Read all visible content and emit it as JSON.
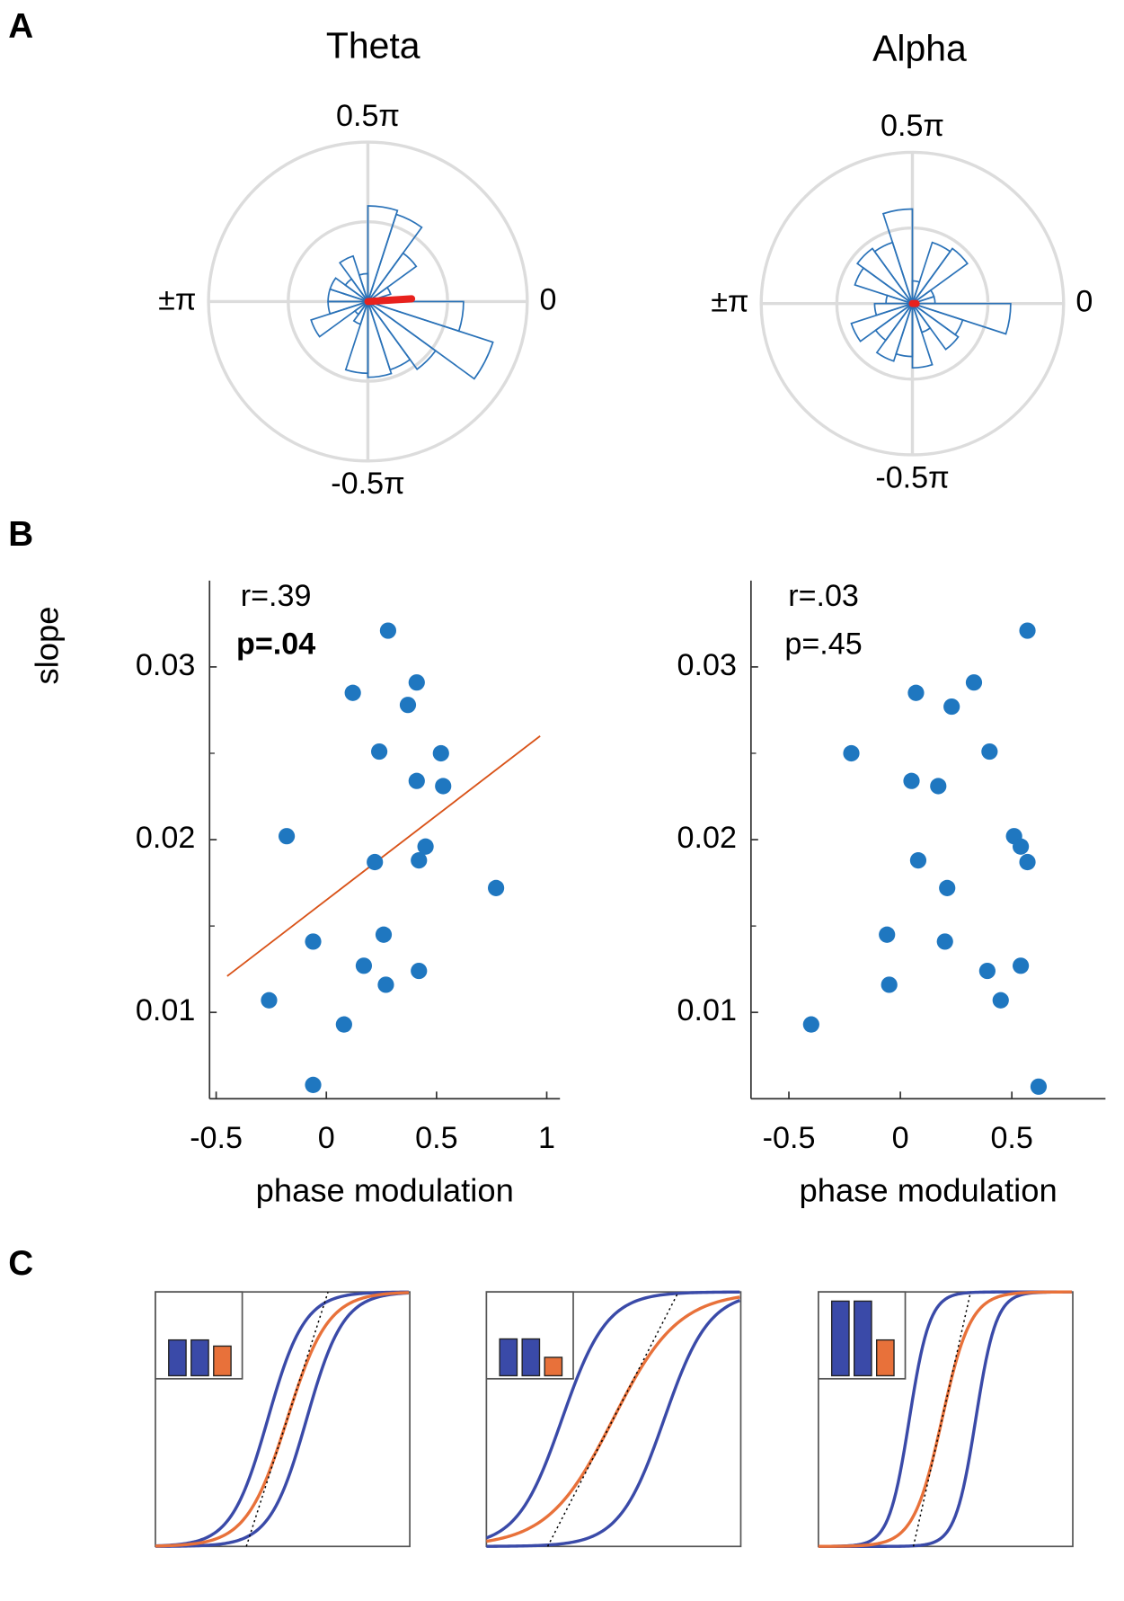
{
  "panel_labels": [
    "A",
    "B",
    "C"
  ],
  "chart_data": [
    {
      "type": "polar_histogram",
      "title": "Theta",
      "bins": [
        -1,
        -0.9,
        -0.8,
        -0.7,
        -0.6,
        -0.5,
        -0.4,
        -0.3,
        -0.2,
        -0.1,
        0,
        0.1,
        0.2,
        0.3,
        0.4,
        0.5,
        0.6,
        0.7,
        0.8,
        0.9,
        1
      ],
      "values": [
        0.5,
        0.75,
        0.2,
        0.3,
        0.9,
        0.95,
        0.9,
        1.05,
        1.65,
        1.2,
        0.2,
        0.3,
        0.75,
        1.15,
        1.2,
        0.35,
        0.6,
        0.35,
        0.5,
        0.5
      ],
      "rlim": [
        0,
        2
      ],
      "rticks": [
        1,
        2
      ],
      "thetaticks": [
        {
          "value": 0.5,
          "label": "0.5π"
        },
        0,
        {
          "value": 1,
          "label": "±π"
        },
        {
          "value": -0.5,
          "label": "-0.5π"
        }
      ],
      "color": "#2a72b8",
      "mean_angle": 0.02,
      "mean_length": 0.55,
      "mean_color": "#e8211d"
    },
    {
      "type": "polar_histogram",
      "title": "Alpha",
      "bins": [
        -1,
        -0.9,
        -0.8,
        -0.7,
        -0.6,
        -0.5,
        -0.4,
        -0.3,
        -0.2,
        -0.1,
        0,
        0.1,
        0.2,
        0.3,
        0.4,
        0.5,
        0.6,
        0.7,
        0.8,
        0.9,
        1
      ],
      "values": [
        0.5,
        0.85,
        0.6,
        0.8,
        0.7,
        0.85,
        0.4,
        0.75,
        0.7,
        1.3,
        0.3,
        0.3,
        0.9,
        0.85,
        0.3,
        1.25,
        0.85,
        0.9,
        0.8,
        0.35
      ],
      "rlim": [
        0,
        2
      ],
      "rticks": [
        1,
        2
      ],
      "thetaticks": [
        {
          "value": 0.5,
          "label": "0.5π"
        },
        0,
        {
          "value": 1,
          "label": "±π"
        },
        {
          "value": -0.5,
          "label": "-0.5π"
        }
      ],
      "color": "#2a72b8",
      "mean_angle": 0,
      "mean_length": 0.05,
      "mean_color": "#e8211d"
    },
    {
      "type": "scatter",
      "x_label": "phase modulation",
      "y_label": "slope",
      "x": [
        0.28,
        0.12,
        0.41,
        0.37,
        0.24,
        0.52,
        0.41,
        0.53,
        -0.18,
        0.45,
        0.22,
        0.42,
        0.77,
        -0.06,
        0.26,
        0.17,
        0.42,
        0.27,
        -0.26,
        0.08,
        -0.06
      ],
      "values": [
        0.0321,
        0.0285,
        0.0291,
        0.0278,
        0.0251,
        0.025,
        0.0234,
        0.0231,
        0.0202,
        0.0196,
        0.0187,
        0.0188,
        0.0172,
        0.0141,
        0.0145,
        0.0127,
        0.0124,
        0.0116,
        0.0107,
        0.0093,
        0.0058
      ],
      "color": "#1f77c0",
      "xlim": [
        -0.53,
        1.06
      ],
      "ylim": [
        0.005,
        0.035
      ],
      "xticks": [
        -0.5,
        0,
        0.5,
        1
      ],
      "yticks": [
        0.01,
        0.02,
        0.03
      ],
      "yminorticks": [
        0.015,
        0.025
      ],
      "annotations": [
        {
          "text": "r=.39",
          "bold": false
        },
        {
          "text": "p=.04",
          "bold": true
        }
      ],
      "fit": {
        "x": [
          -0.45,
          0.97
        ],
        "values": [
          0.0121,
          0.026
        ],
        "color": "#d95319"
      }
    },
    {
      "type": "scatter",
      "x_label": "phase modulation",
      "x": [
        0.57,
        0.07,
        0.33,
        0.23,
        -0.22,
        0.4,
        0.05,
        0.17,
        0.51,
        0.54,
        0.08,
        0.57,
        0.21,
        -0.06,
        0.2,
        0.54,
        0.39,
        -0.05,
        0.45,
        -0.4,
        0.62
      ],
      "values": [
        0.0321,
        0.0285,
        0.0291,
        0.0277,
        0.025,
        0.0251,
        0.0234,
        0.0231,
        0.0202,
        0.0196,
        0.0188,
        0.0187,
        0.0172,
        0.0145,
        0.0141,
        0.0127,
        0.0124,
        0.0116,
        0.0107,
        0.0093,
        0.0057
      ],
      "color": "#1f77c0",
      "xlim": [
        -0.67,
        0.92
      ],
      "ylim": [
        0.005,
        0.035
      ],
      "xticks": [
        -0.5,
        0,
        0.5
      ],
      "yticks": [
        0.01,
        0.02,
        0.03
      ],
      "yminorticks": [
        0.015,
        0.025
      ],
      "annotations": [
        {
          "text": "r=.03",
          "bold": false
        },
        {
          "text": "p=.45",
          "bold": false
        }
      ]
    }
  ]
}
